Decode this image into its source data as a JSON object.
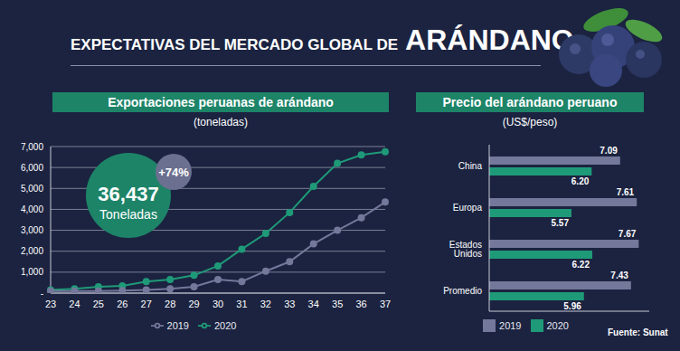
{
  "title": [
    "EXPECTATIVAS DEL MERCADO GLOBAL DE",
    "ARÁNDANO"
  ],
  "source": "Fuente: Sunat",
  "chart_data": [
    {
      "type": "line",
      "title": "Exportaciones peruanas de arándano",
      "subtitle": "(toneladas)",
      "categories": [
        "23",
        "24",
        "25",
        "26",
        "27",
        "28",
        "29",
        "30",
        "31",
        "32",
        "33",
        "34",
        "35",
        "36",
        "37"
      ],
      "series": [
        {
          "name": "2020",
          "color": "#1f9a78",
          "marker": "circle",
          "values": [
            150,
            200,
            300,
            350,
            550,
            650,
            850,
            1300,
            2100,
            2850,
            3850,
            5100,
            6200,
            6600,
            6750
          ]
        },
        {
          "name": "2019",
          "color": "#74789a",
          "marker": "circle",
          "values": [
            100,
            100,
            100,
            120,
            150,
            200,
            300,
            650,
            550,
            1050,
            1500,
            2350,
            3000,
            3600,
            4350
          ]
        }
      ],
      "ylim": [
        0,
        7000
      ],
      "yticks": [
        {
          "value": 0,
          "label": "-"
        },
        {
          "value": 1000,
          "label": "1,000"
        },
        {
          "value": 2000,
          "label": "2,000"
        },
        {
          "value": 3000,
          "label": "3,000"
        },
        {
          "value": 4000,
          "label": "4,000"
        },
        {
          "value": 5000,
          "label": "5,000"
        },
        {
          "value": 6000,
          "label": "6,000"
        },
        {
          "value": 7000,
          "label": "7,000"
        }
      ],
      "grid": true,
      "legend": "bottom",
      "annotations": [
        "36,437",
        "Toneladas",
        "+74%"
      ]
    },
    {
      "type": "bar",
      "orientation": "horizontal",
      "title": "Precio del arándano peruano",
      "subtitle": "(US$/peso)",
      "categories": [
        "China",
        "Europa",
        "Estados Unidos",
        "Promedio"
      ],
      "series": [
        {
          "name": "2019",
          "color": "#74789a",
          "values": [
            7.09,
            7.61,
            7.67,
            7.43
          ]
        },
        {
          "name": "2020",
          "color": "#1f9a78",
          "values": [
            6.2,
            5.57,
            6.22,
            5.96
          ],
          "value_labels": [
            "6.20",
            "5.57",
            "6.22",
            "5.96"
          ]
        }
      ],
      "xlim": [
        3,
        8
      ],
      "data_labels": true,
      "tick_labels": "y",
      "grid": false,
      "legend": "bottom"
    }
  ]
}
